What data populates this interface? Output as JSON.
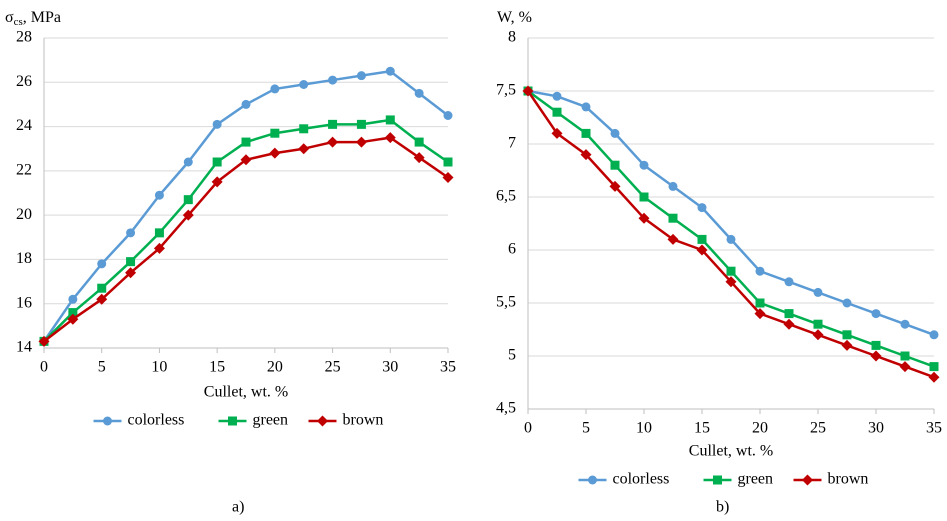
{
  "chart_data": [
    {
      "type": "line",
      "y_label": [
        "σ",
        "cs",
        ", MPa"
      ],
      "x_label": "Cullet, wt. %",
      "caption": "a)",
      "x": [
        0,
        2.5,
        5,
        7.5,
        10,
        12.5,
        15,
        17.5,
        20,
        22.5,
        25,
        27.5,
        30,
        32.5,
        35
      ],
      "xlim": [
        0,
        35
      ],
      "xticks": [
        0,
        5,
        10,
        15,
        20,
        25,
        30,
        35
      ],
      "ylim": [
        14,
        28
      ],
      "yticks": [
        14,
        16,
        18,
        20,
        22,
        24,
        26,
        28
      ],
      "grid": true,
      "legend": "bottom",
      "series": [
        {
          "name": "colorless",
          "color": "#5b9bd5",
          "marker": "circle",
          "values": [
            14.3,
            16.2,
            17.8,
            19.2,
            20.9,
            22.4,
            24.1,
            25.0,
            25.7,
            25.9,
            26.1,
            26.3,
            26.5,
            25.5,
            24.5
          ]
        },
        {
          "name": "green",
          "color": "#00b050",
          "marker": "square",
          "values": [
            14.3,
            15.6,
            16.7,
            17.9,
            19.2,
            20.7,
            22.4,
            23.3,
            23.7,
            23.9,
            24.1,
            24.1,
            24.3,
            23.3,
            22.4
          ]
        },
        {
          "name": "brown",
          "color": "#c00000",
          "marker": "diamond",
          "values": [
            14.3,
            15.3,
            16.2,
            17.4,
            18.5,
            20.0,
            21.5,
            22.5,
            22.8,
            23.0,
            23.3,
            23.3,
            23.5,
            22.6,
            21.7
          ]
        }
      ]
    },
    {
      "type": "line",
      "y_label": [
        "W, %"
      ],
      "x_label": "Cullet, wt. %",
      "caption": "b)",
      "x": [
        0,
        2.5,
        5,
        7.5,
        10,
        12.5,
        15,
        17.5,
        20,
        22.5,
        25,
        27.5,
        30,
        32.5,
        35
      ],
      "xlim": [
        0,
        35
      ],
      "xticks": [
        0,
        5,
        10,
        15,
        20,
        25,
        30,
        35
      ],
      "ylim": [
        4.5,
        8
      ],
      "yticks": [
        {
          "value": 4.5,
          "label": "4,5"
        },
        5,
        {
          "value": 5.5,
          "label": "5,5"
        },
        6,
        {
          "value": 6.5,
          "label": "6,5"
        },
        7,
        {
          "value": 7.5,
          "label": "7,5"
        },
        8
      ],
      "grid": true,
      "legend": "bottom",
      "series": [
        {
          "name": "colorless",
          "color": "#5b9bd5",
          "marker": "circle",
          "values": [
            7.5,
            7.45,
            7.35,
            7.1,
            6.8,
            6.6,
            6.4,
            6.1,
            5.8,
            5.7,
            5.6,
            5.5,
            5.4,
            5.3,
            5.2
          ]
        },
        {
          "name": "green",
          "color": "#00b050",
          "marker": "square",
          "values": [
            7.5,
            7.3,
            7.1,
            6.8,
            6.5,
            6.3,
            6.1,
            5.8,
            5.5,
            5.4,
            5.3,
            5.2,
            5.1,
            5.0,
            4.9
          ]
        },
        {
          "name": "brown",
          "color": "#c00000",
          "marker": "diamond",
          "values": [
            7.5,
            7.1,
            6.9,
            6.6,
            6.3,
            6.1,
            6.0,
            5.7,
            5.4,
            5.3,
            5.2,
            5.1,
            5.0,
            4.9,
            4.8
          ]
        }
      ]
    }
  ]
}
